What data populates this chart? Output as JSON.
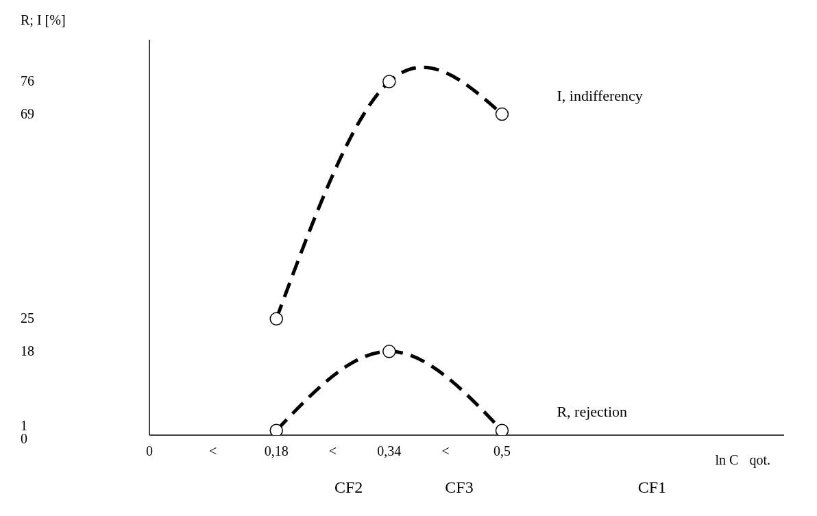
{
  "chart_data": {
    "type": "line",
    "ylabel": "R; I [%]",
    "xlabel": "ln C",
    "x": [
      0.18,
      0.34,
      0.5
    ],
    "series": [
      {
        "name": "I, indifferency",
        "color": "#000000",
        "values": [
          25,
          76,
          69
        ]
      },
      {
        "name": "R, rejection",
        "color": "#000000",
        "values": [
          1,
          18,
          1
        ]
      }
    ],
    "xlim": [
      0,
      0.9
    ],
    "xticks": [
      0,
      {
        "value": 0.09,
        "label": "<"
      },
      {
        "value": 0.18,
        "label": "0,18"
      },
      {
        "value": 0.26,
        "label": "<"
      },
      {
        "value": 0.34,
        "label": "0,34"
      },
      {
        "value": 0.42,
        "label": "<"
      },
      {
        "value": 0.5,
        "label": "0,5"
      }
    ],
    "ylim": [
      0,
      85
    ],
    "yticks": [
      0,
      1,
      18,
      25,
      69,
      76
    ],
    "marker": "circle",
    "line_style": "dashed",
    "grid": false,
    "legend": false,
    "annotations": [
      "qot.",
      "CF2",
      "CF3",
      "CF1"
    ]
  }
}
